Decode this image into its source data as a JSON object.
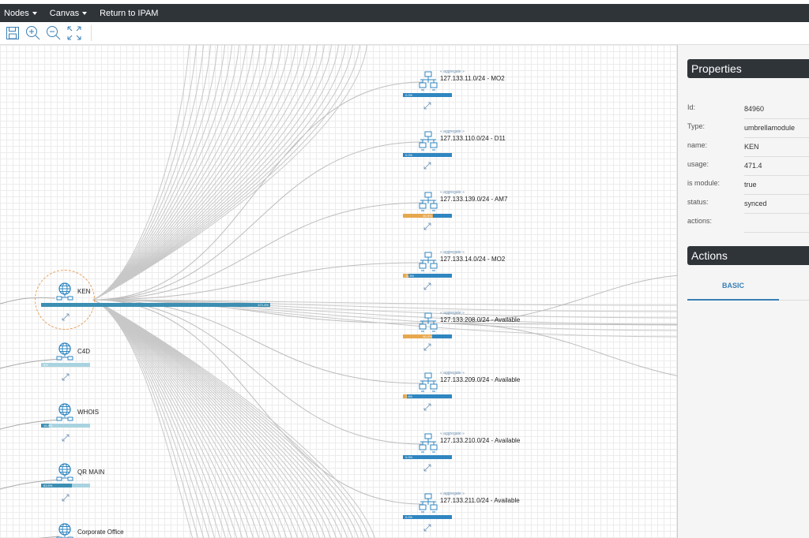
{
  "menu": {
    "nodes": "Nodes",
    "canvas": "Canvas",
    "return": "Return to IPAM"
  },
  "toolbar": [
    "save-icon",
    "zoom-in-icon",
    "zoom-out-icon",
    "fit-screen-icon"
  ],
  "colors": {
    "topbar": "#2f3439",
    "bar": "#2f86c0",
    "bar_used": "#e6a84d",
    "umbrella_bar": "#3c8fb3",
    "selected_ring": "#e8a05a"
  },
  "umbrellas": [
    {
      "name": "KEN",
      "usage_label": "471.4%",
      "usage": 471.4,
      "selected": true
    },
    {
      "name": "C4D",
      "usage_label": "0%",
      "usage": 0
    },
    {
      "name": "WHOIS",
      "usage_label": "16.8%",
      "usage": 16.8
    },
    {
      "name": "QR MAIN",
      "usage_label": "63.5%",
      "usage": 63.5
    },
    {
      "name": "Corporate Office"
    }
  ],
  "aggregates": [
    {
      "tag": "« aggregate »",
      "name": "127.133.11.0/24 - MO2",
      "usage_label": "0.0%",
      "usage": 0
    },
    {
      "tag": "« aggregate »",
      "name": "127.133.110.0/24 - D11",
      "usage_label": "0.0%",
      "usage": 0
    },
    {
      "tag": "« aggregate »",
      "name": "127.133.139.0/24 - AM7",
      "usage_label": "60.9%",
      "usage": 60.9
    },
    {
      "tag": "« aggregate »",
      "name": "127.133.14.0/24 - MO2",
      "usage_label": "11.3%",
      "usage": 11.3
    },
    {
      "tag": "« aggregate »",
      "name": "127.133.208.0/24 - Available",
      "usage_label": "60.0%",
      "usage": 60.0
    },
    {
      "tag": "« aggregate »",
      "name": "127.133.209.0/24 - Available",
      "usage_label": "7.8%",
      "usage": 7.8
    },
    {
      "tag": "« aggregate »",
      "name": "127.133.210.0/24 - Available",
      "usage_label": "0.0%",
      "usage": 0
    },
    {
      "tag": "« aggregate »",
      "name": "127.133.211.0/24 - Available",
      "usage_label": "0.0%",
      "usage": 0
    }
  ],
  "properties": {
    "title": "Properties",
    "rows": [
      {
        "key": "Id:",
        "value": "84960"
      },
      {
        "key": "Type:",
        "value": "umbrellamodule"
      },
      {
        "key": "name:",
        "value": "KEN"
      },
      {
        "key": "usage:",
        "value": "471.4"
      },
      {
        "key": "is module:",
        "value": "true"
      },
      {
        "key": "status:",
        "value": "synced"
      },
      {
        "key": "actions:",
        "value": ""
      }
    ]
  },
  "actions": {
    "title": "Actions",
    "tab": "BASIC"
  }
}
